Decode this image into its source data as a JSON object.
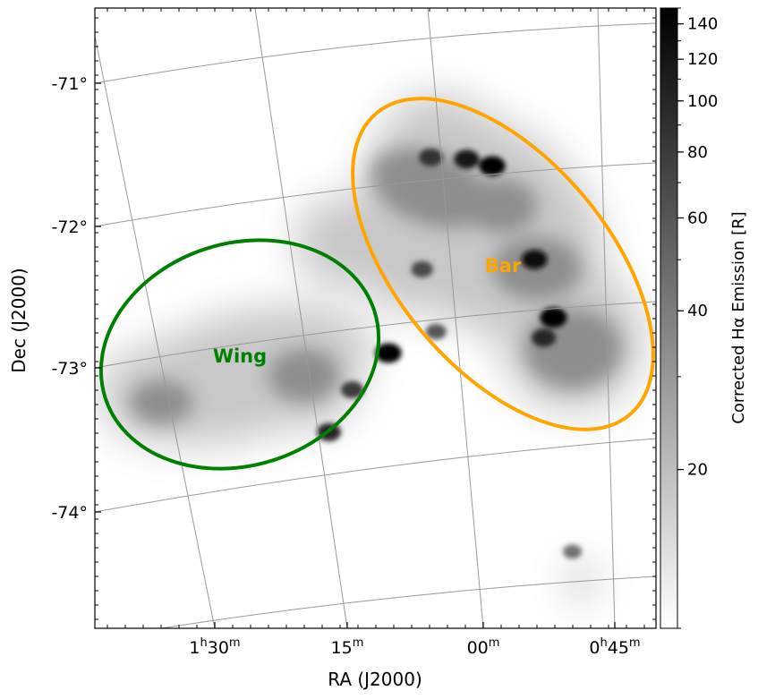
{
  "chart_data": {
    "type": "heatmap",
    "description_type": "sky map (gnomonic projection) of H-alpha emission",
    "xlabel": "RA (J2000)",
    "ylabel": "Dec (J2000)",
    "colorbar_label": "Corrected Hα Emission [R]",
    "colorbar": {
      "scale": "log",
      "range": [
        10,
        150
      ],
      "ticks": [
        {
          "value": 20,
          "label": "20"
        },
        {
          "value": 40,
          "label": "40"
        },
        {
          "value": 60,
          "label": "60"
        },
        {
          "value": 80,
          "label": "80"
        },
        {
          "value": 100,
          "label": "100"
        },
        {
          "value": 120,
          "label": "120"
        },
        {
          "value": 140,
          "label": "140"
        }
      ],
      "colormap": [
        "#ffffff",
        "#000000"
      ]
    },
    "ra_ticks": [
      {
        "h": 1,
        "m": 30,
        "label_h": "1",
        "label_m": "30",
        "show_hours": true
      },
      {
        "h": 1,
        "m": 15,
        "label_h": "",
        "label_m": "15",
        "show_hours": false
      },
      {
        "h": 1,
        "m": 0,
        "label_h": "",
        "label_m": "00",
        "show_hours": false
      },
      {
        "h": 0,
        "m": 45,
        "label_h": "0",
        "label_m": "45",
        "show_hours": true
      }
    ],
    "dec_ticks": [
      {
        "value": -71,
        "label": "-71°"
      },
      {
        "value": -72,
        "label": "-72°"
      },
      {
        "value": -73,
        "label": "-73°"
      },
      {
        "value": -74,
        "label": "-74°"
      }
    ],
    "grid": true,
    "grid_color": "#999999",
    "regions": [
      {
        "name": "Wing",
        "label": "Wing",
        "color": "#008000",
        "ra_deg": 20.1,
        "dec_deg": -73.1
      },
      {
        "name": "Bar",
        "label": "Bar",
        "color": "#ffa500",
        "ra_deg": 13.4,
        "dec_deg": -72.5
      }
    ],
    "emission_sources": [
      {
        "ra_deg": 14.2,
        "dec_deg": -71.75,
        "level_R": 140
      },
      {
        "ra_deg": 15.6,
        "dec_deg": -71.7,
        "level_R": 120
      },
      {
        "ra_deg": 17.6,
        "dec_deg": -71.67,
        "level_R": 90
      },
      {
        "ra_deg": 12.1,
        "dec_deg": -72.4,
        "level_R": 130
      },
      {
        "ra_deg": 11.2,
        "dec_deg": -72.8,
        "level_R": 150
      },
      {
        "ra_deg": 11.8,
        "dec_deg": -72.95,
        "level_R": 100
      },
      {
        "ra_deg": 20.5,
        "dec_deg": -73.0,
        "level_R": 140
      },
      {
        "ra_deg": 18.4,
        "dec_deg": -72.45,
        "level_R": 70
      },
      {
        "ra_deg": 22.6,
        "dec_deg": -73.2,
        "level_R": 80
      },
      {
        "ra_deg": 24.0,
        "dec_deg": -73.45,
        "level_R": 100
      },
      {
        "ra_deg": 17.8,
        "dec_deg": -72.9,
        "level_R": 60
      },
      {
        "ra_deg": 10.8,
        "dec_deg": -74.45,
        "level_R": 45
      }
    ]
  }
}
